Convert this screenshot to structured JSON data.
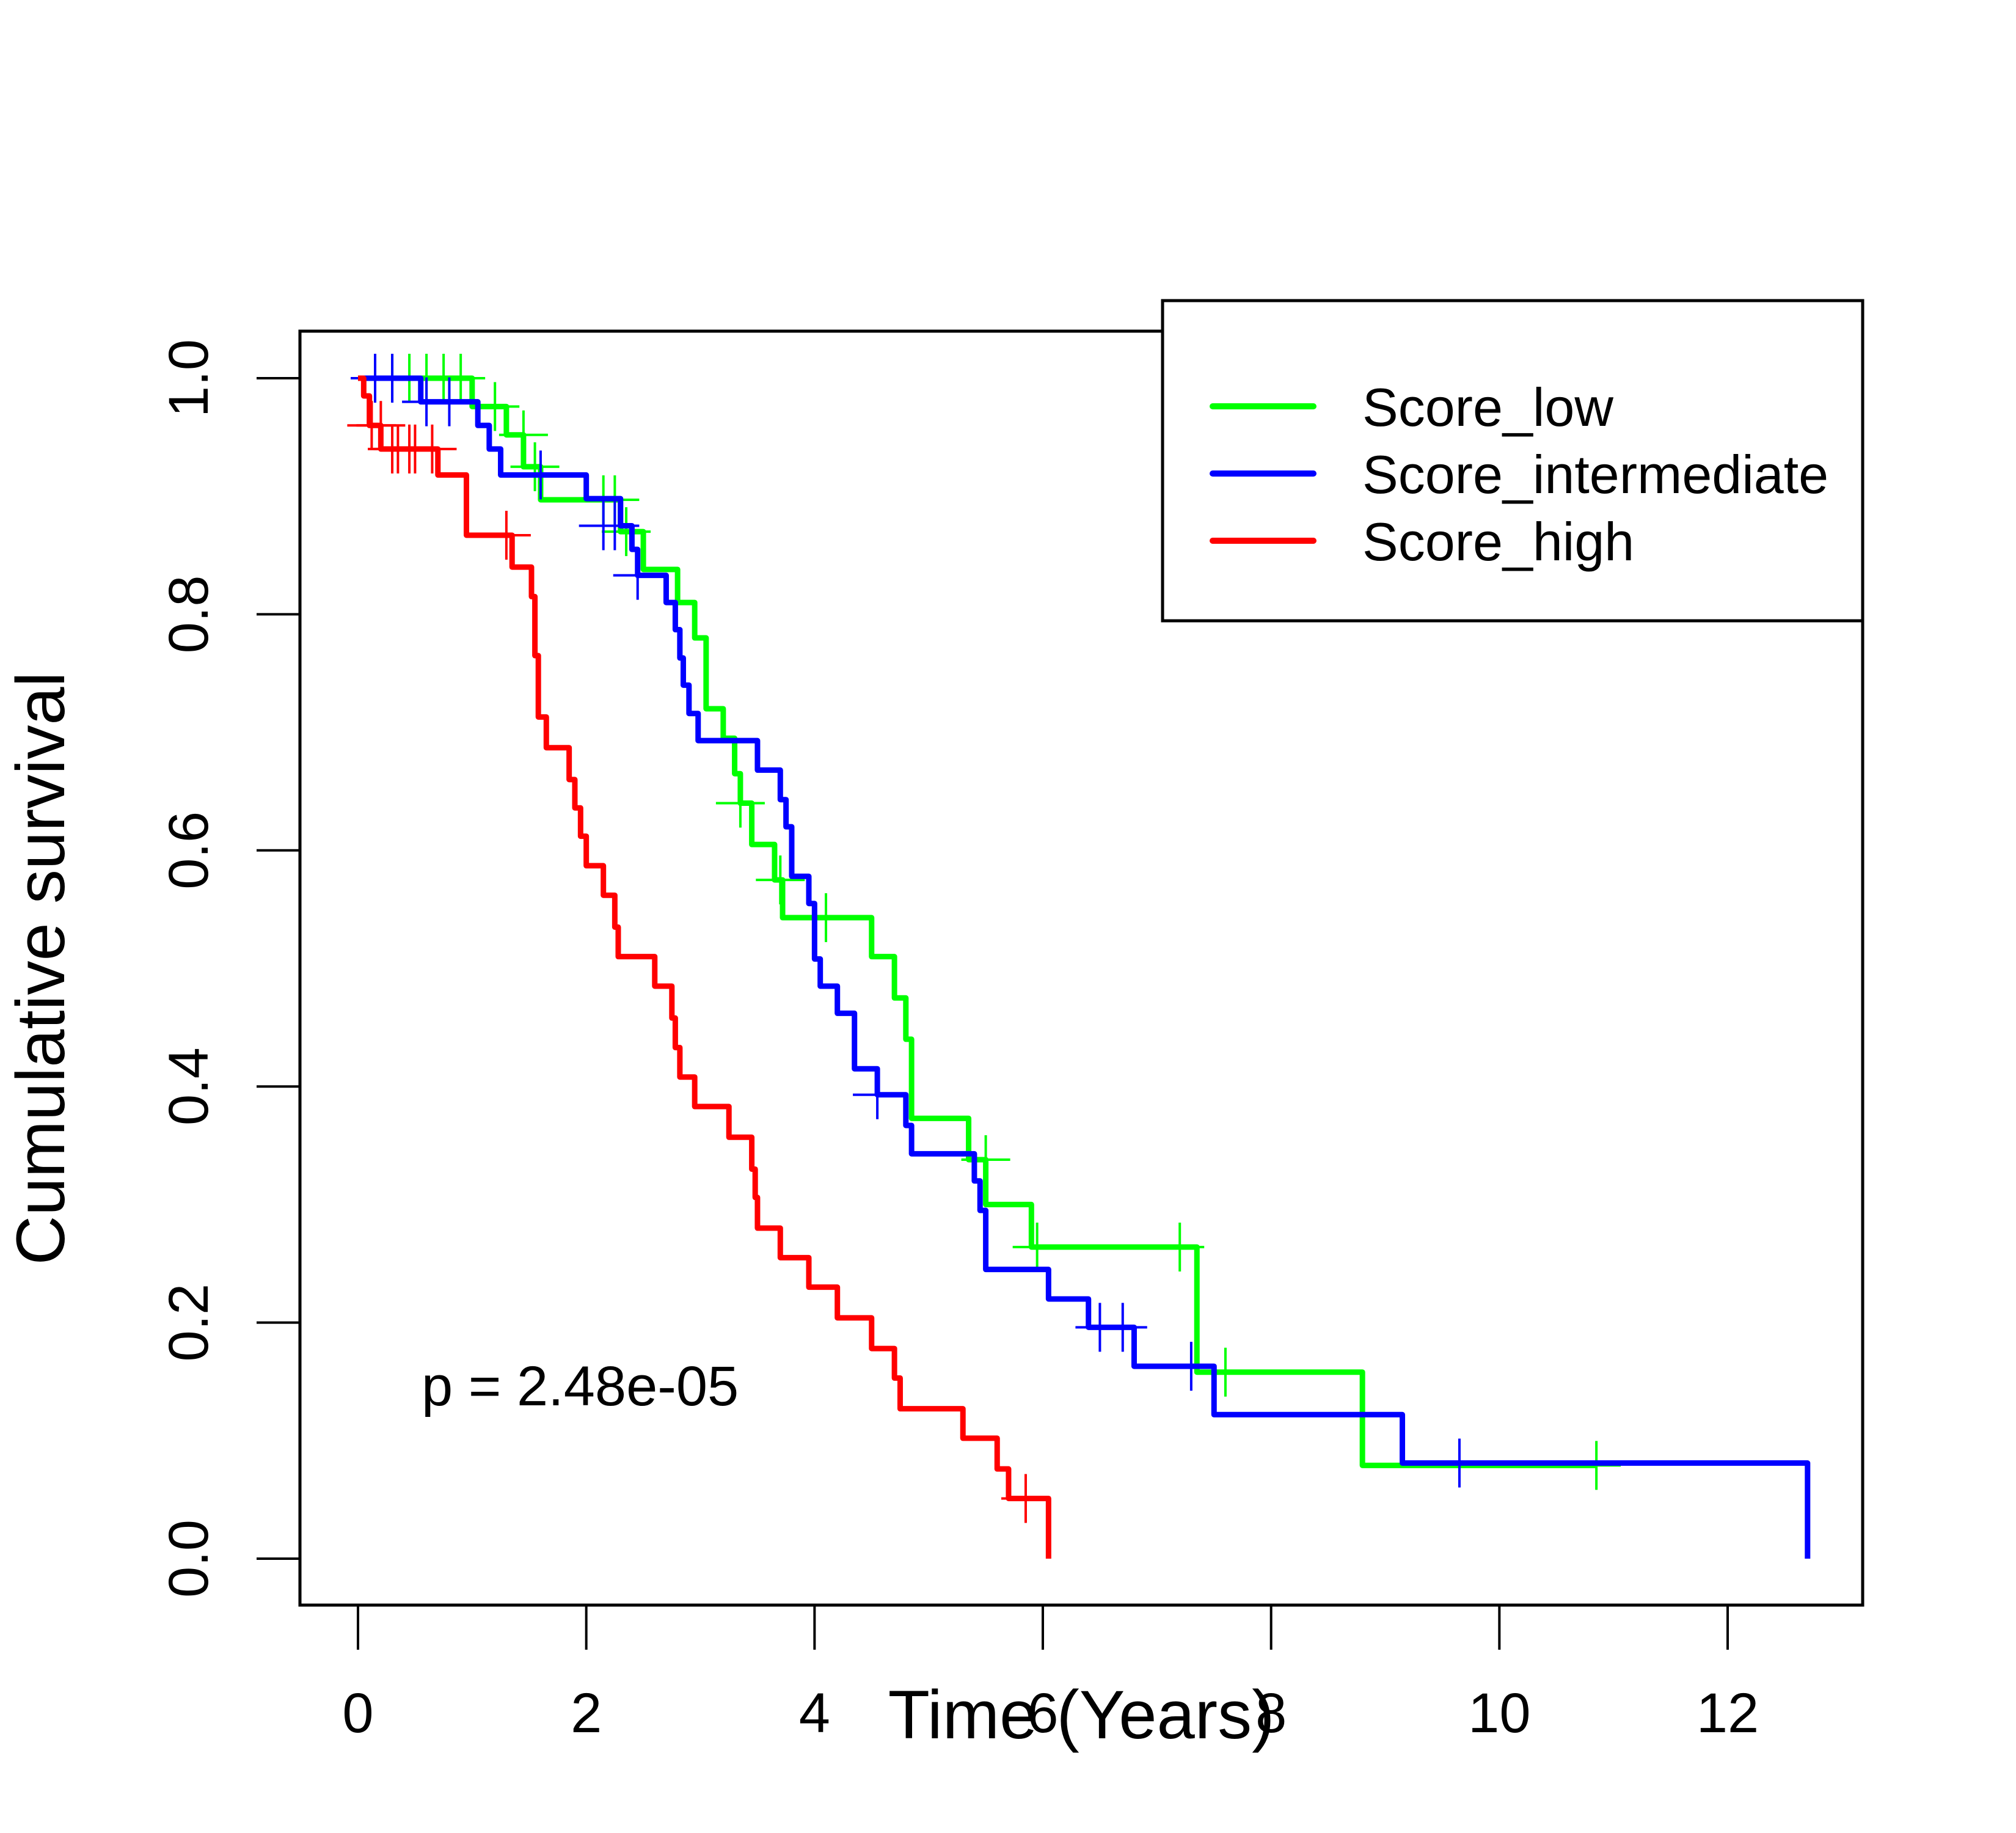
{
  "chart_data": {
    "type": "line",
    "subtype": "kaplan-meier",
    "title": "",
    "xlabel": "Time (Years)",
    "ylabel": "Cumulative survival",
    "xlim": [
      -0.5,
      13.2
    ],
    "ylim": [
      -0.04,
      1.04
    ],
    "xticks": [
      0,
      2,
      4,
      6,
      8,
      10,
      12
    ],
    "xtick_labels": [
      "0",
      "2",
      "4",
      "6",
      "8",
      "10",
      "12"
    ],
    "yticks": [
      0.0,
      0.2,
      0.4,
      0.6,
      0.8,
      1.0
    ],
    "ytick_labels": [
      "0.0",
      "0.2",
      "0.4",
      "0.6",
      "0.8",
      "1.0"
    ],
    "grid": false,
    "legend_position": "top-right",
    "annotation": "p = 2.48e-05",
    "series": [
      {
        "name": "Score_low",
        "color": "#00ff00",
        "steps": [
          [
            0,
            1.0
          ],
          [
            1.0,
            0.976
          ],
          [
            1.3,
            0.952
          ],
          [
            1.45,
            0.925
          ],
          [
            1.6,
            0.897
          ],
          [
            2.3,
            0.87
          ],
          [
            2.5,
            0.838
          ],
          [
            2.8,
            0.81
          ],
          [
            2.95,
            0.78
          ],
          [
            3.05,
            0.72
          ],
          [
            3.2,
            0.695
          ],
          [
            3.3,
            0.665
          ],
          [
            3.35,
            0.64
          ],
          [
            3.45,
            0.605
          ],
          [
            3.65,
            0.575
          ],
          [
            3.72,
            0.543
          ],
          [
            4.5,
            0.51
          ],
          [
            4.7,
            0.475
          ],
          [
            4.8,
            0.44
          ],
          [
            4.85,
            0.373
          ],
          [
            5.35,
            0.338
          ],
          [
            5.5,
            0.3
          ],
          [
            5.9,
            0.264
          ],
          [
            7.35,
            0.158
          ],
          [
            8.8,
            0.079
          ]
        ],
        "end": 10.85,
        "censored": [
          [
            0.3,
            1.0
          ],
          [
            0.45,
            1.0
          ],
          [
            0.6,
            1.0
          ],
          [
            0.75,
            1.0
          ],
          [
            0.9,
            1.0
          ],
          [
            1.2,
            0.976
          ],
          [
            1.45,
            0.952
          ],
          [
            1.55,
            0.925
          ],
          [
            2.15,
            0.897
          ],
          [
            2.25,
            0.897
          ],
          [
            2.35,
            0.87
          ],
          [
            3.35,
            0.64
          ],
          [
            3.7,
            0.575
          ],
          [
            4.1,
            0.543
          ],
          [
            5.5,
            0.338
          ],
          [
            5.95,
            0.264
          ],
          [
            7.2,
            0.264
          ],
          [
            7.6,
            0.158
          ],
          [
            10.85,
            0.079
          ]
        ]
      },
      {
        "name": "Score_intermediate",
        "color": "#0000ff",
        "steps": [
          [
            0,
            1.0
          ],
          [
            0.55,
            0.98
          ],
          [
            1.05,
            0.96
          ],
          [
            1.15,
            0.94
          ],
          [
            1.25,
            0.918
          ],
          [
            2.0,
            0.898
          ],
          [
            2.3,
            0.875
          ],
          [
            2.4,
            0.855
          ],
          [
            2.45,
            0.833
          ],
          [
            2.7,
            0.81
          ],
          [
            2.78,
            0.787
          ],
          [
            2.82,
            0.763
          ],
          [
            2.85,
            0.74
          ],
          [
            2.9,
            0.716
          ],
          [
            2.98,
            0.693
          ],
          [
            3.5,
            0.668
          ],
          [
            3.7,
            0.643
          ],
          [
            3.75,
            0.62
          ],
          [
            3.8,
            0.578
          ],
          [
            3.95,
            0.555
          ],
          [
            4.0,
            0.508
          ],
          [
            4.05,
            0.485
          ],
          [
            4.2,
            0.462
          ],
          [
            4.35,
            0.415
          ],
          [
            4.55,
            0.393
          ],
          [
            4.8,
            0.367
          ],
          [
            4.85,
            0.343
          ],
          [
            5.4,
            0.32
          ],
          [
            5.45,
            0.295
          ],
          [
            5.5,
            0.245
          ],
          [
            6.05,
            0.22
          ],
          [
            6.4,
            0.196
          ],
          [
            6.8,
            0.163
          ],
          [
            7.5,
            0.122
          ],
          [
            9.15,
            0.081
          ],
          [
            12.7,
            0.0
          ]
        ],
        "end": 12.7,
        "censored": [
          [
            0.15,
            1.0
          ],
          [
            0.3,
            1.0
          ],
          [
            0.6,
            0.98
          ],
          [
            0.8,
            0.98
          ],
          [
            1.6,
            0.918
          ],
          [
            2.15,
            0.875
          ],
          [
            2.25,
            0.875
          ],
          [
            2.45,
            0.833
          ],
          [
            4.55,
            0.393
          ],
          [
            6.5,
            0.196
          ],
          [
            6.7,
            0.196
          ],
          [
            7.3,
            0.163
          ],
          [
            9.65,
            0.081
          ]
        ]
      },
      {
        "name": "Score_high",
        "color": "#ff0000",
        "steps": [
          [
            0,
            1.0
          ],
          [
            0.05,
            0.985
          ],
          [
            0.1,
            0.96
          ],
          [
            0.2,
            0.94
          ],
          [
            0.7,
            0.918
          ],
          [
            0.95,
            0.867
          ],
          [
            1.35,
            0.84
          ],
          [
            1.52,
            0.815
          ],
          [
            1.55,
            0.765
          ],
          [
            1.58,
            0.713
          ],
          [
            1.65,
            0.687
          ],
          [
            1.85,
            0.66
          ],
          [
            1.9,
            0.636
          ],
          [
            1.95,
            0.612
          ],
          [
            2.0,
            0.587
          ],
          [
            2.15,
            0.562
          ],
          [
            2.25,
            0.535
          ],
          [
            2.28,
            0.51
          ],
          [
            2.6,
            0.485
          ],
          [
            2.75,
            0.458
          ],
          [
            2.78,
            0.433
          ],
          [
            2.82,
            0.408
          ],
          [
            2.95,
            0.383
          ],
          [
            3.25,
            0.357
          ],
          [
            3.45,
            0.33
          ],
          [
            3.48,
            0.306
          ],
          [
            3.5,
            0.28
          ],
          [
            3.7,
            0.255
          ],
          [
            3.95,
            0.23
          ],
          [
            4.2,
            0.204
          ],
          [
            4.5,
            0.178
          ],
          [
            4.7,
            0.153
          ],
          [
            4.75,
            0.127
          ],
          [
            5.3,
            0.102
          ],
          [
            5.6,
            0.076
          ],
          [
            5.7,
            0.051
          ],
          [
            6.05,
            0.0
          ]
        ],
        "end": 6.05,
        "censored": [
          [
            0.12,
            0.96
          ],
          [
            0.3,
            0.94
          ],
          [
            0.35,
            0.94
          ],
          [
            0.45,
            0.94
          ],
          [
            0.5,
            0.94
          ],
          [
            0.65,
            0.94
          ],
          [
            0.2,
            0.96
          ],
          [
            1.3,
            0.867
          ],
          [
            5.85,
            0.051
          ]
        ]
      }
    ]
  }
}
